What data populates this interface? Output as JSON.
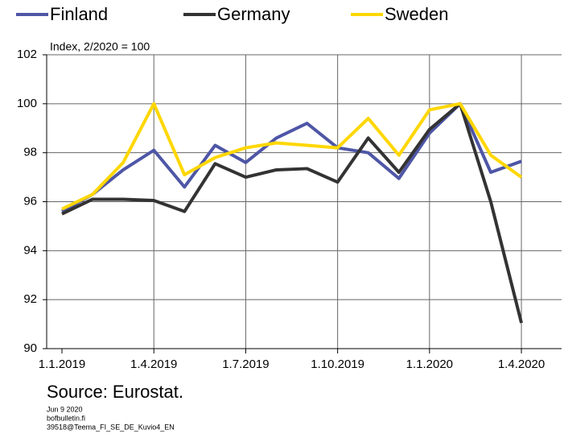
{
  "chart_data": {
    "type": "line",
    "annotation": "Index, 2/2020 = 100",
    "source": "Source: Eurostat.",
    "footnotes": [
      "Jun 9 2020",
      "bofbulletin.fi",
      "39518@Teema_FI_SE_DE_Kuvio4_EN"
    ],
    "categories": [
      "1.1.2019",
      null,
      null,
      "1.4.2019",
      null,
      null,
      "1.7.2019",
      null,
      null,
      "1.10.2019",
      null,
      null,
      "1.1.2020",
      null,
      null,
      "1.4.2020"
    ],
    "series": [
      {
        "name": "Finland",
        "color": "#4e56a6",
        "values": [
          95.6,
          96.3,
          97.3,
          98.1,
          96.6,
          98.3,
          97.6,
          98.6,
          99.2,
          98.2,
          98.0,
          96.95,
          98.8,
          100,
          97.2,
          97.65
        ]
      },
      {
        "name": "Germany",
        "color": "#333333",
        "values": [
          95.5,
          96.1,
          96.1,
          96.05,
          95.6,
          97.55,
          97.0,
          97.3,
          97.35,
          96.8,
          98.6,
          97.2,
          98.95,
          100,
          96.0,
          91.05
        ]
      },
      {
        "name": "Sweden",
        "color": "#ffd700",
        "values": [
          95.7,
          96.3,
          97.6,
          100,
          97.1,
          97.8,
          98.2,
          98.4,
          98.3,
          98.2,
          99.4,
          97.9,
          99.75,
          100,
          97.9,
          97.0
        ]
      }
    ],
    "ylim": [
      90,
      102
    ],
    "yticks": [
      90,
      92,
      94,
      96,
      98,
      100,
      102
    ],
    "grid": true
  }
}
